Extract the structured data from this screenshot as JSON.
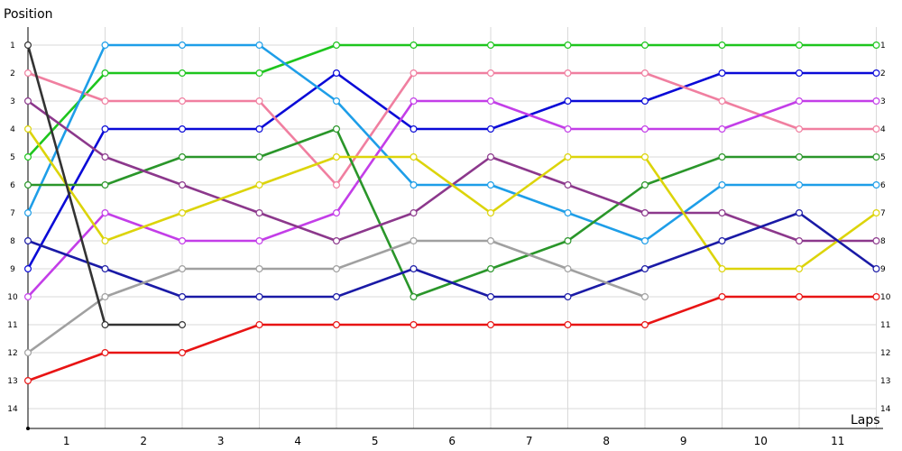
{
  "chart_data": {
    "type": "line",
    "ylabel": "Position",
    "xlabel": "Laps",
    "x": [
      0,
      1,
      2,
      3,
      4,
      5,
      6,
      7,
      8,
      9,
      10,
      11
    ],
    "x_tick_labels": [
      "1",
      "2",
      "3",
      "4",
      "5",
      "6",
      "7",
      "8",
      "9",
      "10",
      "11"
    ],
    "y_tick_labels": [
      "1",
      "2",
      "3",
      "4",
      "5",
      "6",
      "7",
      "8",
      "9",
      "10",
      "11",
      "12",
      "13",
      "14"
    ],
    "right_tick_labels": [
      "1",
      "2",
      "3",
      "4",
      "5",
      "6",
      "7",
      "8",
      "9",
      "10",
      "11",
      "12",
      "13",
      "14"
    ],
    "ylim": [
      1,
      14
    ],
    "y_inverted": true,
    "grid": true,
    "legend": "none",
    "series": [
      {
        "color": "#1ec51e",
        "values": [
          5,
          2,
          2,
          2,
          1,
          1,
          1,
          1,
          1,
          1,
          1,
          1
        ]
      },
      {
        "color": "#0a0ad7",
        "values": [
          9,
          4,
          4,
          4,
          2,
          4,
          4,
          3,
          3,
          2,
          2,
          2
        ]
      },
      {
        "color": "#f07fa0",
        "values": [
          2,
          3,
          3,
          3,
          6,
          2,
          2,
          2,
          2,
          3,
          4,
          4
        ]
      },
      {
        "color": "#1e9ee8",
        "values": [
          7,
          1,
          1,
          1,
          3,
          6,
          6,
          7,
          8,
          6,
          6,
          6
        ]
      },
      {
        "color": "#c33ee8",
        "values": [
          10,
          7,
          8,
          8,
          7,
          3,
          3,
          4,
          4,
          4,
          3,
          3
        ]
      },
      {
        "color": "#2a962a",
        "values": [
          6,
          6,
          5,
          5,
          4,
          10,
          9,
          8,
          6,
          5,
          5,
          5
        ]
      },
      {
        "color": "#8c388c",
        "values": [
          3,
          5,
          6,
          7,
          8,
          7,
          5,
          6,
          7,
          7,
          8,
          8
        ]
      },
      {
        "color": "#dcd40a",
        "values": [
          4,
          8,
          7,
          6,
          5,
          5,
          7,
          5,
          5,
          9,
          9,
          7
        ]
      },
      {
        "color": "#1a1aa6",
        "values": [
          8,
          9,
          10,
          10,
          10,
          9,
          10,
          10,
          9,
          8,
          7,
          9
        ]
      },
      {
        "color": "#a0a0a0",
        "values": [
          12,
          10,
          9,
          9,
          9,
          8,
          8,
          9,
          10,
          null,
          null,
          null
        ]
      },
      {
        "color": "#e81414",
        "values": [
          13,
          12,
          12,
          11,
          11,
          11,
          11,
          11,
          11,
          10,
          10,
          10
        ]
      },
      {
        "color": "#333333",
        "values": [
          1,
          11,
          11,
          null,
          null,
          null,
          null,
          null,
          null,
          null,
          null,
          null
        ]
      }
    ]
  }
}
